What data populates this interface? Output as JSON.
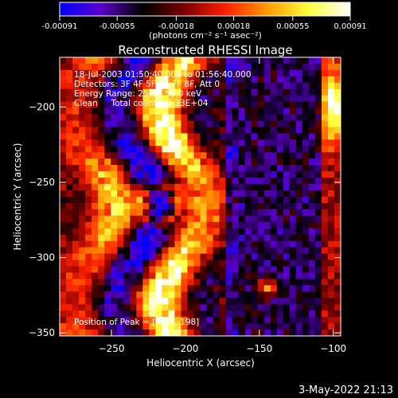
{
  "colorbar": {
    "tick_labels": [
      "-0.00091",
      "-0.00055",
      "-0.00018",
      "0.00018",
      "0.00055",
      "0.00091"
    ],
    "ticks": [
      -0.00091,
      -0.00055,
      -0.00018,
      0.00018,
      0.00055,
      0.00091
    ],
    "range": [
      -0.00091,
      0.00091
    ],
    "units": "(photons cm⁻² s⁻¹ asec⁻²)",
    "colors": [
      "#0000ff",
      "#5a00c8",
      "#000000",
      "#7a0000",
      "#ff2000",
      "#ff9a00",
      "#ffff40",
      "#ffffff"
    ]
  },
  "chart_data": {
    "type": "heatmap",
    "title": "Reconstructed RHESSI Image",
    "xlabel": "Heliocentric X (arcsec)",
    "ylabel": "Heliocentric Y (arcsec)",
    "xlim": [
      -285,
      -95
    ],
    "ylim": [
      -352,
      -167
    ],
    "x_ticks": [
      -250,
      -200,
      -150,
      -100
    ],
    "y_ticks": [
      -350,
      -300,
      -250,
      -200
    ],
    "x_tick_labels": [
      "−250",
      "−200",
      "−150",
      "−100"
    ],
    "y_tick_labels": [
      "−350",
      "−300",
      "−250",
      "−200"
    ],
    "info_lines": [
      "18-Jul-2003 01:50:40.000 to 01:56:40.000",
      "Detectors: 3F 4F 5F 6F 7F 8F, Att 0",
      "Energy Range: 25.0 - 50.0 keV",
      "Clean     Total counts: 3.33E+04"
    ],
    "peak_label": "Position of Peak = [-102,-198]",
    "peak": [
      -102,
      -198
    ],
    "grid": false
  },
  "footer": {
    "date": "3-May-2022 21:13"
  }
}
